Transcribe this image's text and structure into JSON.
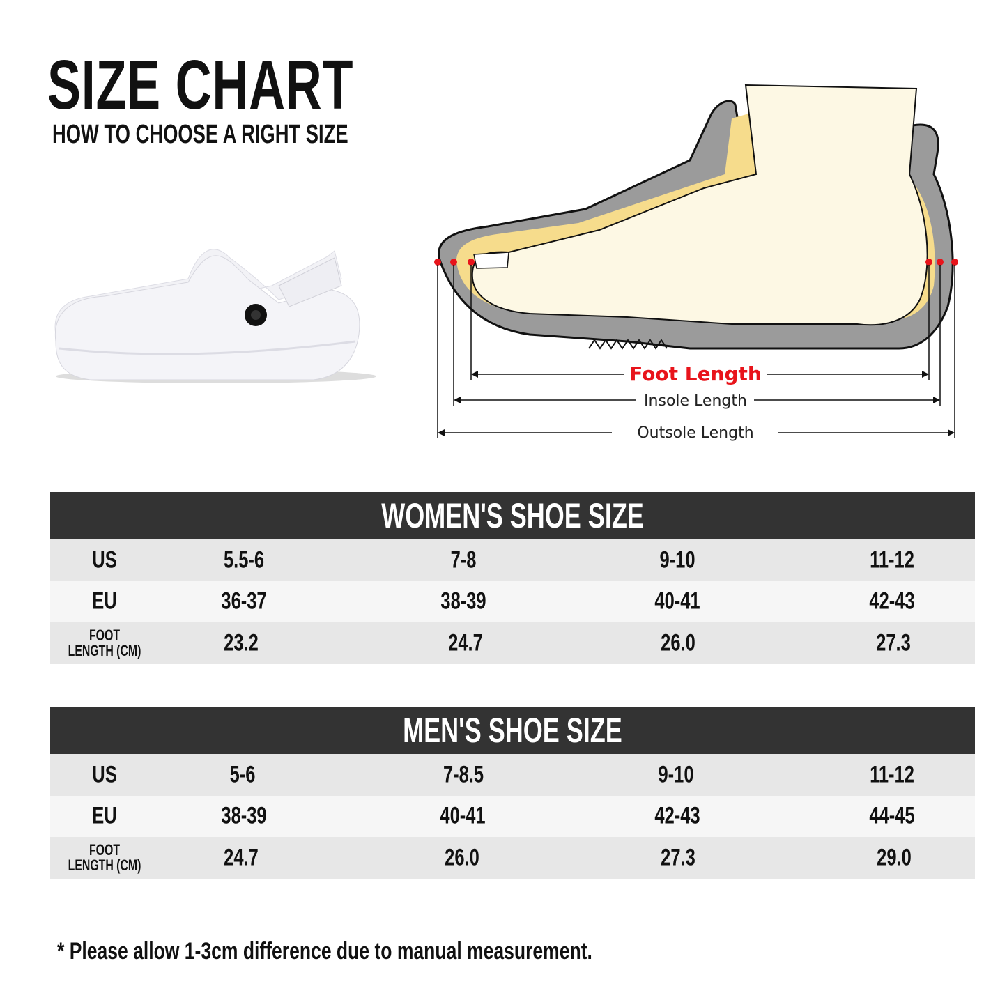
{
  "header": {
    "title": "SIZE CHART",
    "subtitle": "HOW TO CHOOSE A RIGHT SIZE"
  },
  "diagram": {
    "foot_length_label": "Foot Length",
    "insole_length_label": "Insole Length",
    "outsole_length_label": "Outsole Length",
    "accent_color": "#e8141b"
  },
  "tables": [
    {
      "title": "WOMEN'S SHOE SIZE",
      "rows": [
        {
          "label": "US",
          "values": [
            "5.5-6",
            "7-8",
            "9-10",
            "11-12"
          ]
        },
        {
          "label": "EU",
          "values": [
            "36-37",
            "38-39",
            "40-41",
            "42-43"
          ]
        },
        {
          "label_line1": "FOOT",
          "label_line2": "LENGTH (CM)",
          "values": [
            "23.2",
            "24.7",
            "26.0",
            "27.3"
          ]
        }
      ]
    },
    {
      "title": "MEN'S SHOE SIZE",
      "rows": [
        {
          "label": "US",
          "values": [
            "5-6",
            "7-8.5",
            "9-10",
            "11-12"
          ]
        },
        {
          "label": "EU",
          "values": [
            "38-39",
            "40-41",
            "42-43",
            "44-45"
          ]
        },
        {
          "label_line1": "FOOT",
          "label_line2": "LENGTH (CM)",
          "values": [
            "24.7",
            "26.0",
            "27.3",
            "29.0"
          ]
        }
      ]
    }
  ],
  "footnote": "* Please allow 1-3cm difference due to manual measurement."
}
